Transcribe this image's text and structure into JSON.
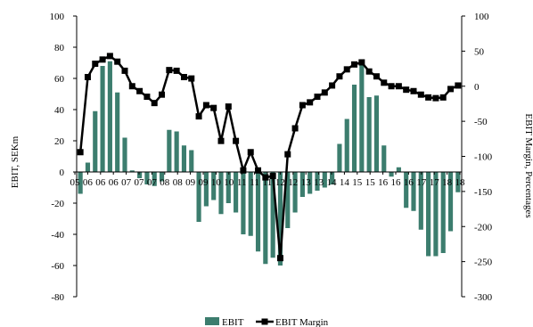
{
  "chart_data": {
    "type": "bar+line",
    "title": "",
    "ylabel_left": "EBIT, SEKm",
    "ylabel_right": "EBIT Margin, Percentages",
    "ylim_left": [
      -80,
      100
    ],
    "ylim_right": [
      -300,
      100
    ],
    "yticks_left": [
      "100",
      "80",
      "60",
      "40",
      "20",
      "0",
      "-20",
      "-40",
      "-60",
      "-80"
    ],
    "yticks_right": [
      "100",
      "50",
      "0",
      "-50",
      "-100",
      "-150",
      "-200",
      "-250",
      "-300"
    ],
    "x_tick_labels": [
      "05",
      "06",
      "06",
      "06",
      "07",
      "07",
      "07",
      "08",
      "08",
      "09",
      "09",
      "10",
      "10",
      "11",
      "11",
      "11",
      "12",
      "12",
      "13",
      "13",
      "14",
      "14",
      "15",
      "15",
      "16",
      "16",
      "16",
      "17",
      "17",
      "18",
      "18"
    ],
    "legend": {
      "position": "bottom-center"
    },
    "grid": false,
    "colors": {
      "bar": "#3c7d6e",
      "line": "#000000"
    },
    "series": [
      {
        "name": "EBIT",
        "kind": "bar",
        "axis": "left",
        "values": [
          -14,
          6,
          39,
          68,
          71,
          51,
          22,
          1,
          -4,
          -8,
          -9,
          -6,
          27,
          26,
          17,
          14,
          -32,
          -22,
          -18,
          -27,
          -20,
          -26,
          -40,
          -41,
          -51,
          -59,
          -55,
          -60,
          -36,
          -26,
          -16,
          -14,
          -12,
          -10,
          -8,
          18,
          34,
          56,
          70,
          48,
          49,
          17,
          -3,
          3,
          -23,
          -25,
          -37,
          -54,
          -54,
          -52,
          -38,
          -13
        ]
      },
      {
        "name": "EBIT Margin",
        "kind": "line",
        "axis": "right",
        "values": [
          -94,
          13,
          32,
          38,
          43,
          35,
          22,
          0,
          -7,
          -15,
          -24,
          -12,
          23,
          22,
          13,
          11,
          -43,
          -27,
          -31,
          -78,
          -29,
          -78,
          -120,
          -94,
          -120,
          -130,
          -128,
          -245,
          -97,
          -60,
          -27,
          -23,
          -15,
          -9,
          1,
          14,
          24,
          31,
          34,
          21,
          14,
          5,
          0,
          0,
          -5,
          -7,
          -12,
          -16,
          -17,
          -16,
          -4,
          1
        ]
      }
    ]
  }
}
